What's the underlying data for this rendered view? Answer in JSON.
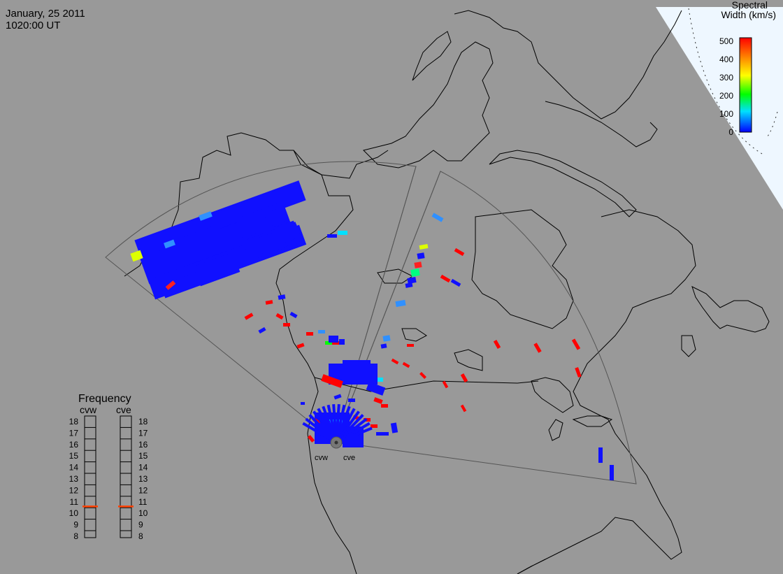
{
  "header": {
    "date": "January, 25 2011",
    "time": "1020:00 UT"
  },
  "colorbar": {
    "title_line1": "Spectral",
    "title_line2": "Width (km/s)",
    "tick_labels": [
      "500",
      "400",
      "300",
      "200",
      "100",
      "0"
    ],
    "colors": [
      "#ff0000",
      "#ff8000",
      "#ffff00",
      "#00ff00",
      "#00e0ff",
      "#0000ff"
    ]
  },
  "radars": {
    "west_label": "cvw",
    "east_label": "cve"
  },
  "frequency_panel": {
    "title": "Frequency",
    "west_label": "cvw",
    "east_label": "cve",
    "scale": [
      "18",
      "17",
      "16",
      "15",
      "14",
      "13",
      "12",
      "11",
      "10",
      "9",
      "8"
    ],
    "cvw_mhz": 10.6,
    "cve_mhz": 10.6,
    "marker_color": "#ff4000"
  },
  "colors": {
    "background": "#999999",
    "polar_cap": "#eef7ff",
    "coastline": "#000000",
    "fov": "#555555",
    "scatter_low": "#1010ff"
  }
}
